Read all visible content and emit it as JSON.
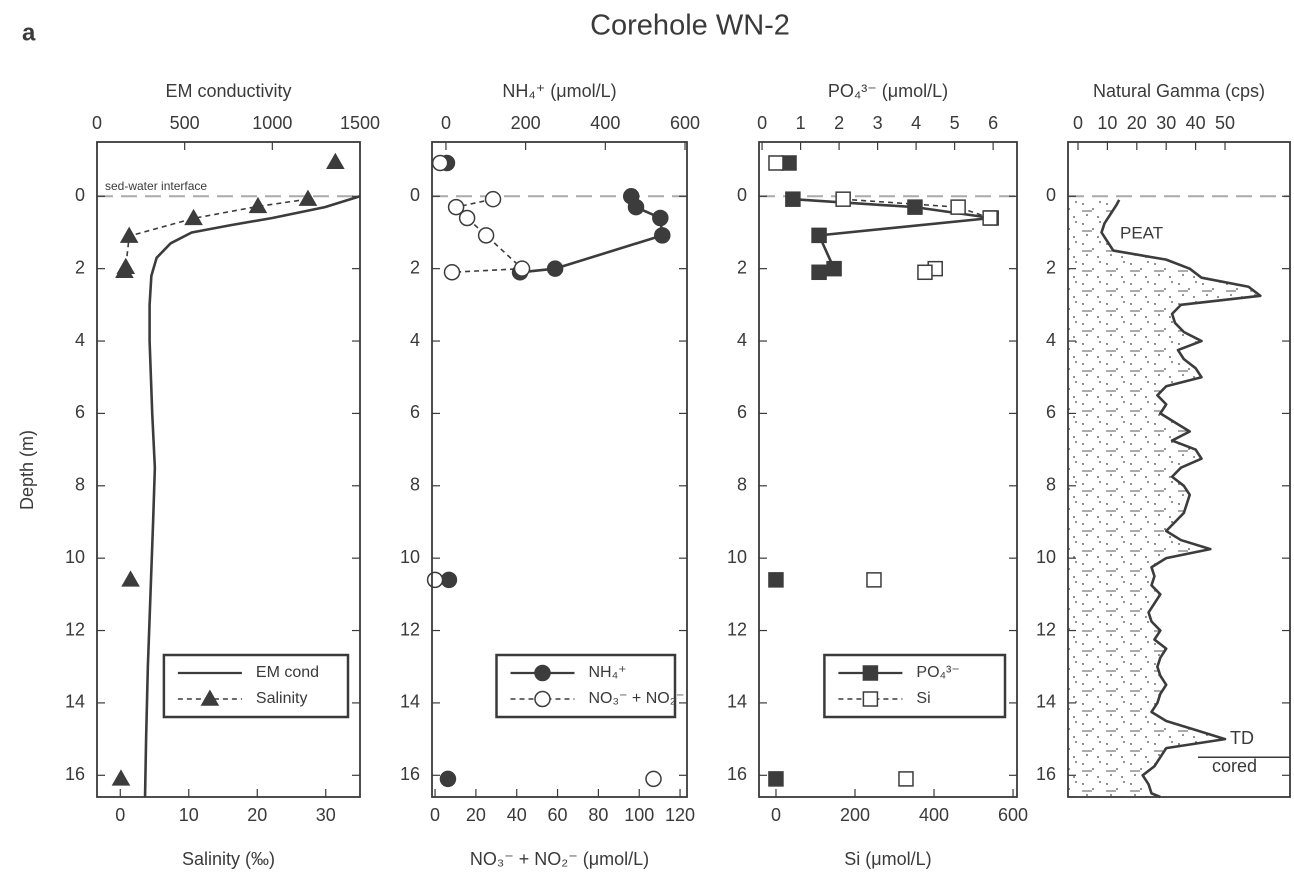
{
  "title": "Corehole WN-2",
  "panel_label": "a",
  "chart_data": [
    {
      "type": "profile",
      "xlabel": "EM conductivity",
      "x2label": "Salinity (‰)",
      "ylabel": "Depth (m)",
      "xlim": [
        0,
        1500
      ],
      "xticks": [
        0,
        500,
        1000,
        1500
      ],
      "x2lim": [
        -3.4,
        35
      ],
      "x2ticks": [
        0,
        10,
        20,
        30
      ],
      "ylim": [
        -1.5,
        16.6
      ],
      "yticks": [
        0,
        2,
        4,
        6,
        8,
        10,
        12,
        14,
        16
      ],
      "y_inverted": true,
      "interface_depth": 0,
      "annotation": "sed-water interface",
      "legend": "lower right",
      "series": [
        {
          "name": "EM cond",
          "color": "#3c3c3c",
          "axis": "x",
          "marker": "none",
          "dashed": false,
          "depth": [
            0,
            0.3,
            0.6,
            0.8,
            1.0,
            1.3,
            1.7,
            2.2,
            3,
            4,
            6,
            7.5,
            9,
            11,
            13,
            15,
            16.6
          ],
          "values": [
            1500,
            1300,
            1000,
            760,
            540,
            420,
            340,
            310,
            300,
            300,
            315,
            330,
            320,
            305,
            290,
            280,
            274
          ]
        },
        {
          "name": "Salinity",
          "color": "#3c3c3c",
          "axis": "x2",
          "marker": "triangle",
          "filled": true,
          "dashed": true,
          "depth": [
            -0.94,
            null,
            0.08,
            0.28,
            0.61,
            1.1,
            1.96,
            2.07,
            null,
            10.6,
            null,
            16.1
          ],
          "values": [
            31.4,
            null,
            27.4,
            20.1,
            10.7,
            1.3,
            0.8,
            0.6,
            null,
            1.5,
            null,
            0.1
          ]
        }
      ]
    },
    {
      "type": "profile",
      "xlabel": "NH₄⁺ (μmol/L)",
      "x2label": "NO₃⁻ + NO₂⁻ (μmol/L)",
      "xlim": [
        -35,
        605
      ],
      "xticks": [
        0,
        200,
        400,
        600
      ],
      "x2lim": [
        -1.5,
        123.4
      ],
      "x2ticks": [
        0,
        20,
        40,
        60,
        80,
        100,
        120
      ],
      "ylim": [
        -1.5,
        16.6
      ],
      "yticks": [
        0,
        2,
        4,
        6,
        8,
        10,
        12,
        14,
        16
      ],
      "y_inverted": true,
      "interface_depth": 0,
      "legend": "lower right",
      "series": [
        {
          "name": "NH₄⁺",
          "color": "#3c3c3c",
          "axis": "x",
          "marker": "circle",
          "filled": true,
          "dashed": false,
          "depth": [
            -0.92,
            null,
            0,
            0.3,
            0.6,
            1.08,
            2.0,
            2.1,
            null,
            10.6,
            null,
            16.1
          ],
          "values": [
            2.5,
            null,
            465,
            477,
            538,
            543,
            274,
            186,
            null,
            7.5,
            null,
            5
          ]
        },
        {
          "name": "NO₃⁻ + NO₂⁻",
          "color": "#3c3c3c",
          "axis": "x2",
          "marker": "circle",
          "filled": false,
          "dashed": true,
          "depth": [
            -0.92,
            null,
            0.08,
            0.3,
            0.6,
            1.08,
            2.0,
            2.1,
            null,
            10.6,
            null,
            16.1
          ],
          "values": [
            2.5,
            null,
            28.4,
            10.3,
            15.7,
            25,
            42.6,
            8.3,
            null,
            0,
            null,
            107
          ]
        }
      ]
    },
    {
      "type": "profile",
      "xlabel": "PO₄³⁻ (μmol/L)",
      "x2label": "Si (μmol/L)",
      "xlim": [
        -0.08,
        6.62
      ],
      "xticks": [
        0,
        1,
        2,
        3,
        4,
        5,
        6
      ],
      "x2lim": [
        -43,
        610
      ],
      "x2ticks": [
        0,
        200,
        400,
        600
      ],
      "ylim": [
        -1.5,
        16.6
      ],
      "yticks": [
        0,
        2,
        4,
        6,
        8,
        10,
        12,
        14,
        16
      ],
      "y_inverted": true,
      "interface_depth": 0,
      "legend": "lower right",
      "series": [
        {
          "name": "PO₄³⁻",
          "color": "#3c3c3c",
          "axis": "x",
          "marker": "square",
          "filled": true,
          "dashed": false,
          "depth": [
            -0.92,
            null,
            0.08,
            0.3,
            0.6,
            1.08,
            2.0,
            2.1,
            null,
            10.6,
            null,
            16.1
          ],
          "values": [
            0.7,
            null,
            0.8,
            3.97,
            5.95,
            1.48,
            1.87,
            1.48,
            null,
            0.36,
            null,
            0.36
          ]
        },
        {
          "name": "Si",
          "color": "#3c3c3c",
          "axis": "x2",
          "marker": "square",
          "filled": false,
          "dashed": true,
          "depth": [
            -0.92,
            null,
            0.08,
            0.3,
            0.6,
            null,
            2.0,
            null,
            2.1,
            null,
            10.6,
            null,
            16.1
          ],
          "values": [
            0,
            null,
            170,
            461,
            542,
            null,
            403,
            null,
            377,
            null,
            248,
            null,
            329
          ]
        }
      ]
    },
    {
      "type": "profile",
      "xlabel": "Natural Gamma (cps)",
      "xlim": [
        -3.4,
        72.1
      ],
      "xticks": [
        0,
        10,
        20,
        30,
        40,
        50
      ],
      "ylim": [
        -1.5,
        16.6
      ],
      "yticks": [
        0,
        2,
        4,
        6,
        8,
        10,
        12,
        14,
        16
      ],
      "y_inverted": true,
      "interface_depth": 0,
      "annotations": [
        "PEAT",
        "TD",
        "cored"
      ],
      "td_depth": 15.5,
      "series": [
        {
          "color": "#3c3c3c",
          "axis": "x",
          "marker": "none",
          "dashed": false,
          "area": true,
          "depth": [
            0.1,
            0.25,
            0.5,
            0.75,
            1.0,
            1.25,
            1.5,
            1.75,
            2.0,
            2.25,
            2.5,
            2.75,
            3.0,
            3.25,
            3.5,
            3.75,
            4.0,
            4.25,
            4.5,
            4.75,
            5.0,
            5.25,
            5.5,
            5.75,
            6.0,
            6.25,
            6.5,
            6.75,
            7.0,
            7.25,
            7.5,
            7.75,
            8.0,
            8.25,
            8.5,
            8.75,
            9.0,
            9.25,
            9.5,
            9.75,
            10.0,
            10.25,
            10.5,
            10.75,
            11.0,
            11.25,
            11.5,
            11.75,
            12.0,
            12.25,
            12.5,
            12.75,
            13.0,
            13.25,
            13.5,
            13.75,
            14.0,
            14.25,
            14.5,
            14.75,
            15.0,
            15.25,
            15.5,
            15.75,
            16.0,
            16.25,
            16.5,
            16.6
          ],
          "values": [
            14,
            13,
            11,
            9,
            8,
            10,
            12,
            30,
            38,
            42,
            58,
            62,
            35,
            32,
            33,
            36,
            42,
            34,
            36,
            40,
            42,
            30,
            27,
            30,
            28,
            33,
            38,
            32,
            40,
            42,
            35,
            32,
            36,
            38,
            37,
            36,
            33,
            30,
            35,
            45,
            30,
            25,
            26,
            25,
            28,
            26,
            24,
            25,
            28,
            26,
            30,
            28,
            27,
            28,
            30,
            28,
            27,
            25,
            30,
            40,
            50,
            30,
            28,
            26,
            22,
            24,
            25,
            28
          ]
        }
      ]
    }
  ]
}
